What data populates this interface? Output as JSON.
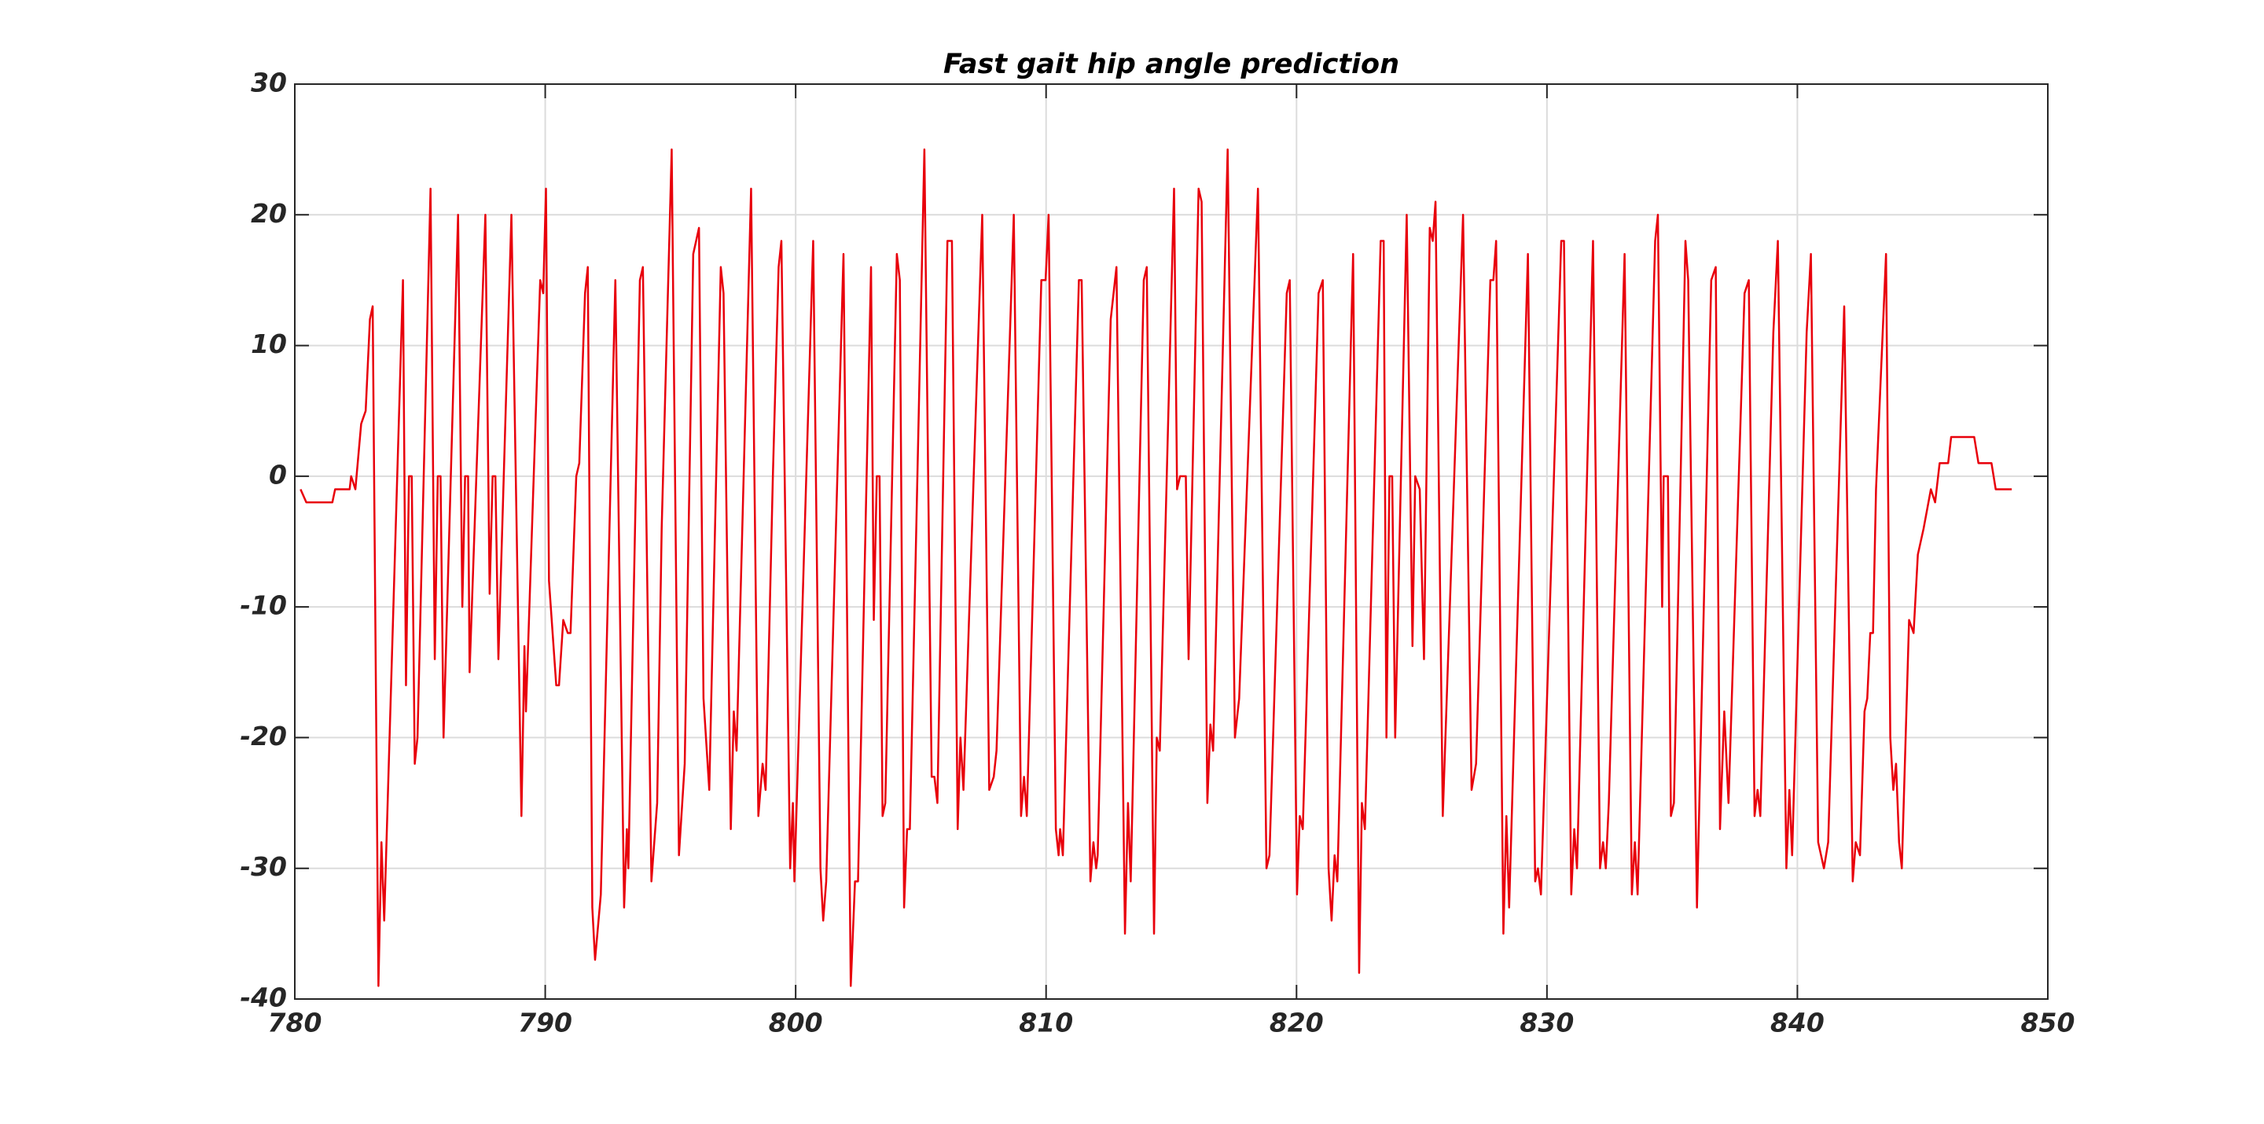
{
  "chart_data": {
    "type": "line",
    "title": "Fast gait hip angle prediction",
    "x": [
      780.23,
      780.46,
      781.5,
      781.61,
      782.19,
      782.25,
      782.42,
      782.65,
      782.83,
      783.0,
      783.11,
      783.34,
      783.46,
      783.57,
      784.32,
      784.44,
      784.56,
      784.67,
      784.79,
      784.9,
      785.42,
      785.59,
      785.71,
      785.82,
      785.94,
      786.52,
      786.69,
      786.8,
      786.92,
      786.98,
      787.61,
      787.78,
      787.9,
      788.01,
      788.13,
      788.65,
      789.05,
      789.17,
      789.23,
      789.8,
      789.92,
      790.03,
      790.15,
      790.44,
      790.55,
      790.72,
      790.9,
      791.01,
      791.24,
      791.36,
      791.59,
      791.7,
      791.88,
      791.99,
      792.22,
      792.8,
      793.15,
      793.26,
      793.32,
      793.78,
      793.9,
      794.24,
      794.47,
      794.65,
      795.05,
      795.34,
      795.57,
      795.91,
      796.14,
      796.32,
      796.55,
      797.01,
      797.12,
      797.41,
      797.53,
      797.64,
      798.22,
      798.51,
      798.68,
      798.8,
      799.09,
      799.32,
      799.43,
      799.78,
      799.89,
      799.95,
      800.7,
      800.99,
      801.1,
      801.22,
      801.91,
      802.2,
      802.37,
      802.49,
      803.01,
      803.12,
      803.24,
      803.35,
      803.47,
      803.58,
      804.04,
      804.16,
      804.33,
      804.45,
      804.56,
      805.14,
      805.43,
      805.54,
      805.66,
      806.06,
      806.24,
      806.47,
      806.58,
      806.7,
      807.45,
      807.73,
      807.91,
      808.02,
      808.71,
      809.0,
      809.12,
      809.23,
      809.81,
      809.98,
      810.1,
      810.39,
      810.5,
      810.56,
      810.67,
      811.31,
      811.42,
      811.77,
      811.89,
      812.0,
      812.06,
      812.58,
      812.81,
      813.15,
      813.27,
      813.38,
      813.9,
      814.02,
      814.31,
      814.42,
      814.54,
      815.11,
      815.23,
      815.35,
      815.58,
      815.69,
      816.09,
      816.21,
      816.44,
      816.56,
      816.67,
      817.25,
      817.54,
      817.71,
      818.46,
      818.8,
      818.92,
      819.61,
      819.73,
      820.02,
      820.13,
      820.25,
      820.88,
      821.05,
      821.28,
      821.4,
      821.52,
      821.63,
      822.26,
      822.5,
      822.61,
      822.73,
      823.36,
      823.48,
      823.59,
      823.71,
      823.82,
      823.94,
      824.4,
      824.63,
      824.74,
      824.92,
      825.09,
      825.32,
      825.44,
      825.55,
      825.84,
      826.65,
      826.99,
      827.17,
      827.74,
      827.86,
      827.97,
      828.26,
      828.38,
      828.49,
      829.24,
      829.53,
      829.64,
      829.76,
      830.57,
      830.68,
      830.97,
      831.09,
      831.2,
      831.84,
      832.12,
      832.24,
      832.35,
      832.47,
      833.1,
      833.39,
      833.51,
      833.62,
      834.32,
      834.43,
      834.6,
      834.66,
      834.83,
      834.95,
      835.07,
      835.53,
      835.64,
      835.99,
      836.56,
      836.74,
      836.91,
      837.08,
      837.25,
      837.89,
      838.06,
      838.29,
      838.41,
      838.52,
      839.04,
      839.22,
      839.56,
      839.68,
      839.79,
      840.37,
      840.54,
      840.83,
      841.06,
      841.23,
      841.87,
      842.21,
      842.33,
      842.5,
      842.68,
      842.79,
      842.91,
      843.02,
      843.14,
      843.54,
      843.71,
      843.83,
      843.94,
      844.06,
      844.17,
      844.46,
      844.64,
      844.81,
      845.04,
      845.33,
      845.5,
      845.68,
      846.02,
      846.14,
      847.06,
      847.23,
      847.75,
      847.92,
      848.56
    ],
    "values": [
      -1,
      -2,
      -2,
      -1,
      -1,
      0,
      -1,
      4,
      5,
      12,
      13,
      -39,
      -28,
      -34,
      15,
      -16,
      0,
      0,
      -22,
      -20,
      22,
      -14,
      0,
      0,
      -20,
      20,
      -10,
      0,
      0,
      -15,
      20,
      -9,
      0,
      0,
      -14,
      20,
      -26,
      -13,
      -18,
      15,
      14,
      22,
      -8,
      -16,
      -16,
      -11,
      -12,
      -12,
      0,
      1,
      14,
      16,
      -33,
      -37,
      -32,
      15,
      -33,
      -27,
      -30,
      15,
      16,
      -31,
      -25,
      -4,
      25,
      -29,
      -22,
      17,
      19,
      -17,
      -24,
      16,
      14,
      -27,
      -18,
      -21,
      22,
      -26,
      -22,
      -24,
      0,
      16,
      18,
      -30,
      -25,
      -31,
      18,
      -30,
      -34,
      -31,
      17,
      -39,
      -31,
      -31,
      16,
      -11,
      0,
      0,
      -26,
      -25,
      17,
      15,
      -33,
      -27,
      -27,
      25,
      -23,
      -23,
      -25,
      18,
      18,
      -27,
      -20,
      -24,
      20,
      -24,
      -23,
      -21,
      20,
      -26,
      -23,
      -26,
      15,
      15,
      20,
      -27,
      -29,
      -27,
      -29,
      15,
      15,
      -31,
      -28,
      -30,
      -29,
      12,
      16,
      -35,
      -25,
      -31,
      15,
      16,
      -35,
      -20,
      -21,
      22,
      -1,
      0,
      0,
      -14,
      22,
      21,
      -25,
      -19,
      -21,
      25,
      -20,
      -17,
      22,
      -30,
      -29,
      14,
      15,
      -32,
      -26,
      -27,
      14,
      15,
      -30,
      -34,
      -29,
      -31,
      17,
      -38,
      -25,
      -27,
      18,
      18,
      -20,
      0,
      0,
      -20,
      20,
      -13,
      0,
      -1,
      -14,
      19,
      18,
      21,
      -26,
      20,
      -24,
      -22,
      15,
      15,
      18,
      -35,
      -26,
      -33,
      17,
      -31,
      -30,
      -32,
      18,
      18,
      -32,
      -27,
      -30,
      18,
      -30,
      -28,
      -30,
      -25,
      17,
      -32,
      -28,
      -32,
      18,
      20,
      -10,
      0,
      0,
      -26,
      -25,
      18,
      15,
      -33,
      15,
      16,
      -27,
      -18,
      -25,
      14,
      15,
      -26,
      -24,
      -26,
      11,
      18,
      -30,
      -24,
      -29,
      11,
      17,
      -28,
      -30,
      -28,
      13,
      -31,
      -28,
      -29,
      -18,
      -17,
      -12,
      -12,
      -1,
      17,
      -20,
      -24,
      -22,
      -28,
      -30,
      -11,
      -12,
      -6,
      -4,
      -1,
      -2,
      1,
      1,
      3,
      3,
      1,
      1,
      -1,
      -1
    ],
    "color": "#e8000b",
    "xlim": [
      780,
      850
    ],
    "xticks": [
      780,
      790,
      800,
      810,
      820,
      830,
      840,
      850
    ],
    "ylim": [
      -40,
      30
    ],
    "yticks": [
      -40,
      -30,
      -20,
      -10,
      0,
      10,
      20,
      30
    ],
    "grid": true
  }
}
